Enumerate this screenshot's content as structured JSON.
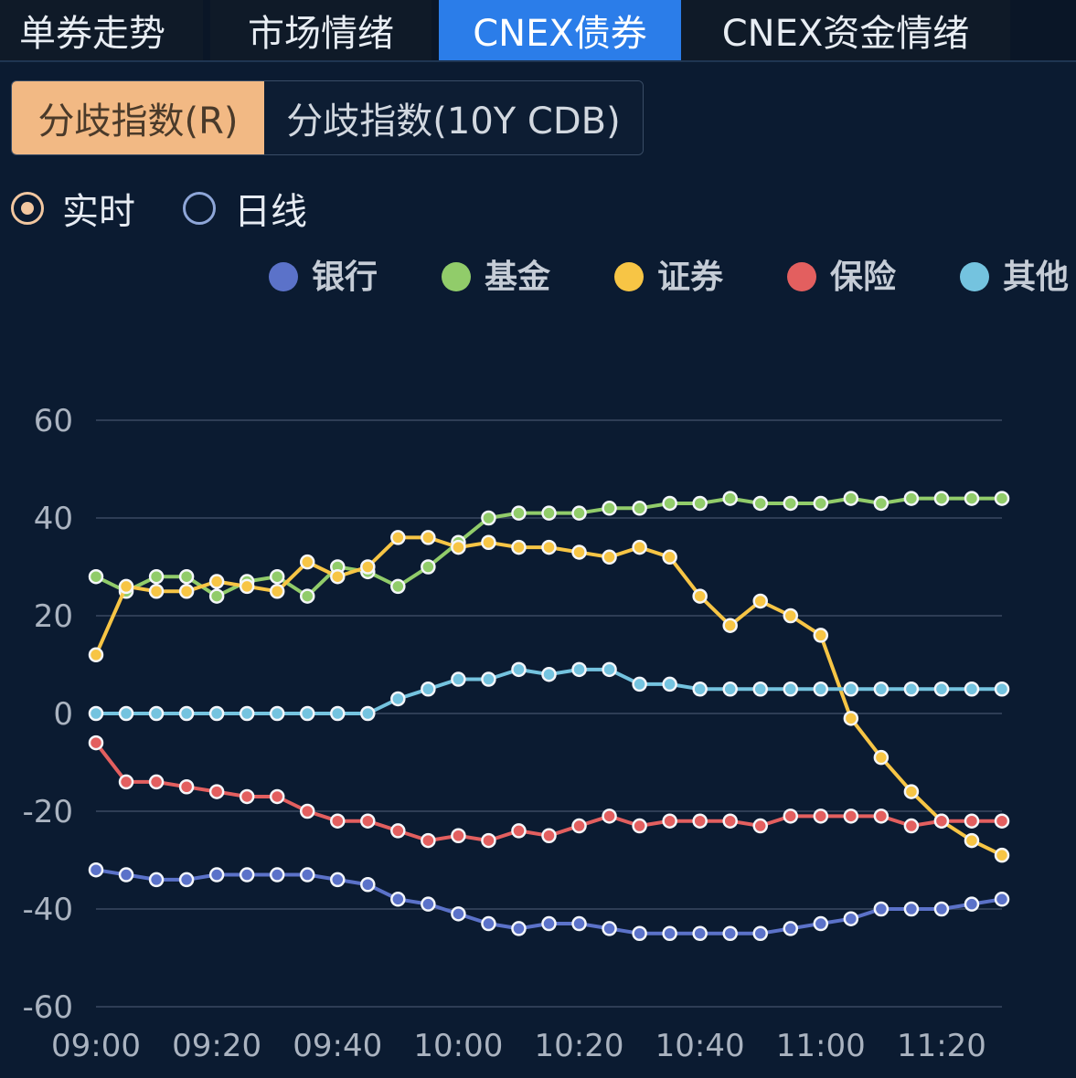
{
  "tabs": [
    {
      "label": "单券走势",
      "active": false
    },
    {
      "label": "市场情绪",
      "active": false
    },
    {
      "label": "CNEX债券",
      "active": true
    },
    {
      "label": "CNEX资金情绪",
      "active": false
    }
  ],
  "subtabs": [
    {
      "label": "分歧指数(R)",
      "active": true
    },
    {
      "label": "分歧指数(10Y CDB)",
      "active": false
    }
  ],
  "radios": [
    {
      "label": "实时",
      "checked": true
    },
    {
      "label": "日线",
      "checked": false
    }
  ],
  "colors": {
    "accent": "#2b7de9",
    "subtab_active": "#f2b984",
    "grid": "#2e3d55",
    "axis_text": "#aab3c0"
  },
  "chart_data": {
    "type": "line",
    "title": "",
    "xlabel": "",
    "ylabel": "",
    "ylim": [
      -60,
      60
    ],
    "yticks": [
      60,
      40,
      20,
      0,
      -20,
      -40,
      -60
    ],
    "x_tick_labels": [
      "09:00",
      "09:20",
      "09:40",
      "10:00",
      "10:20",
      "10:40",
      "11:00",
      "11:20"
    ],
    "x_start_minutes": 540,
    "x_step_minutes": 5,
    "x_count": 31,
    "x_range_minutes": [
      540,
      690
    ],
    "legend": "top-right",
    "grid": true,
    "series": [
      {
        "name": "银行",
        "color": "#5b72c9",
        "values": [
          -32,
          -33,
          -34,
          -34,
          -33,
          -33,
          -33,
          -33,
          -34,
          -35,
          -38,
          -39,
          -41,
          -43,
          -44,
          -43,
          -43,
          -44,
          -45,
          -45,
          -45,
          -45,
          -45,
          -44,
          -43,
          -42,
          -40,
          -40,
          -40,
          -39,
          -38
        ]
      },
      {
        "name": "基金",
        "color": "#91cc6a",
        "values": [
          28,
          25,
          28,
          28,
          24,
          27,
          28,
          24,
          30,
          29,
          26,
          30,
          35,
          40,
          41,
          41,
          41,
          42,
          42,
          43,
          43,
          44,
          43,
          43,
          43,
          44,
          43,
          44,
          44,
          44,
          44
        ]
      },
      {
        "name": "证券",
        "color": "#f7c545",
        "values": [
          12,
          26,
          25,
          25,
          27,
          26,
          25,
          31,
          28,
          30,
          36,
          36,
          34,
          35,
          34,
          34,
          33,
          32,
          34,
          32,
          24,
          18,
          23,
          20,
          16,
          -1,
          -9,
          -16,
          -22,
          -26,
          -29
        ]
      },
      {
        "name": "保险",
        "color": "#e35f5f",
        "values": [
          -6,
          -14,
          -14,
          -15,
          -16,
          -17,
          -17,
          -20,
          -22,
          -22,
          -24,
          -26,
          -25,
          -26,
          -24,
          -25,
          -23,
          -21,
          -23,
          -22,
          -22,
          -22,
          -23,
          -21,
          -21,
          -21,
          -21,
          -23,
          -22,
          -22,
          -22
        ]
      },
      {
        "name": "其他",
        "color": "#74c3df",
        "values": [
          0,
          0,
          0,
          0,
          0,
          0,
          0,
          0,
          0,
          0,
          3,
          5,
          7,
          7,
          9,
          8,
          9,
          9,
          6,
          6,
          5,
          5,
          5,
          5,
          5,
          5,
          5,
          5,
          5,
          5,
          5
        ]
      }
    ]
  }
}
